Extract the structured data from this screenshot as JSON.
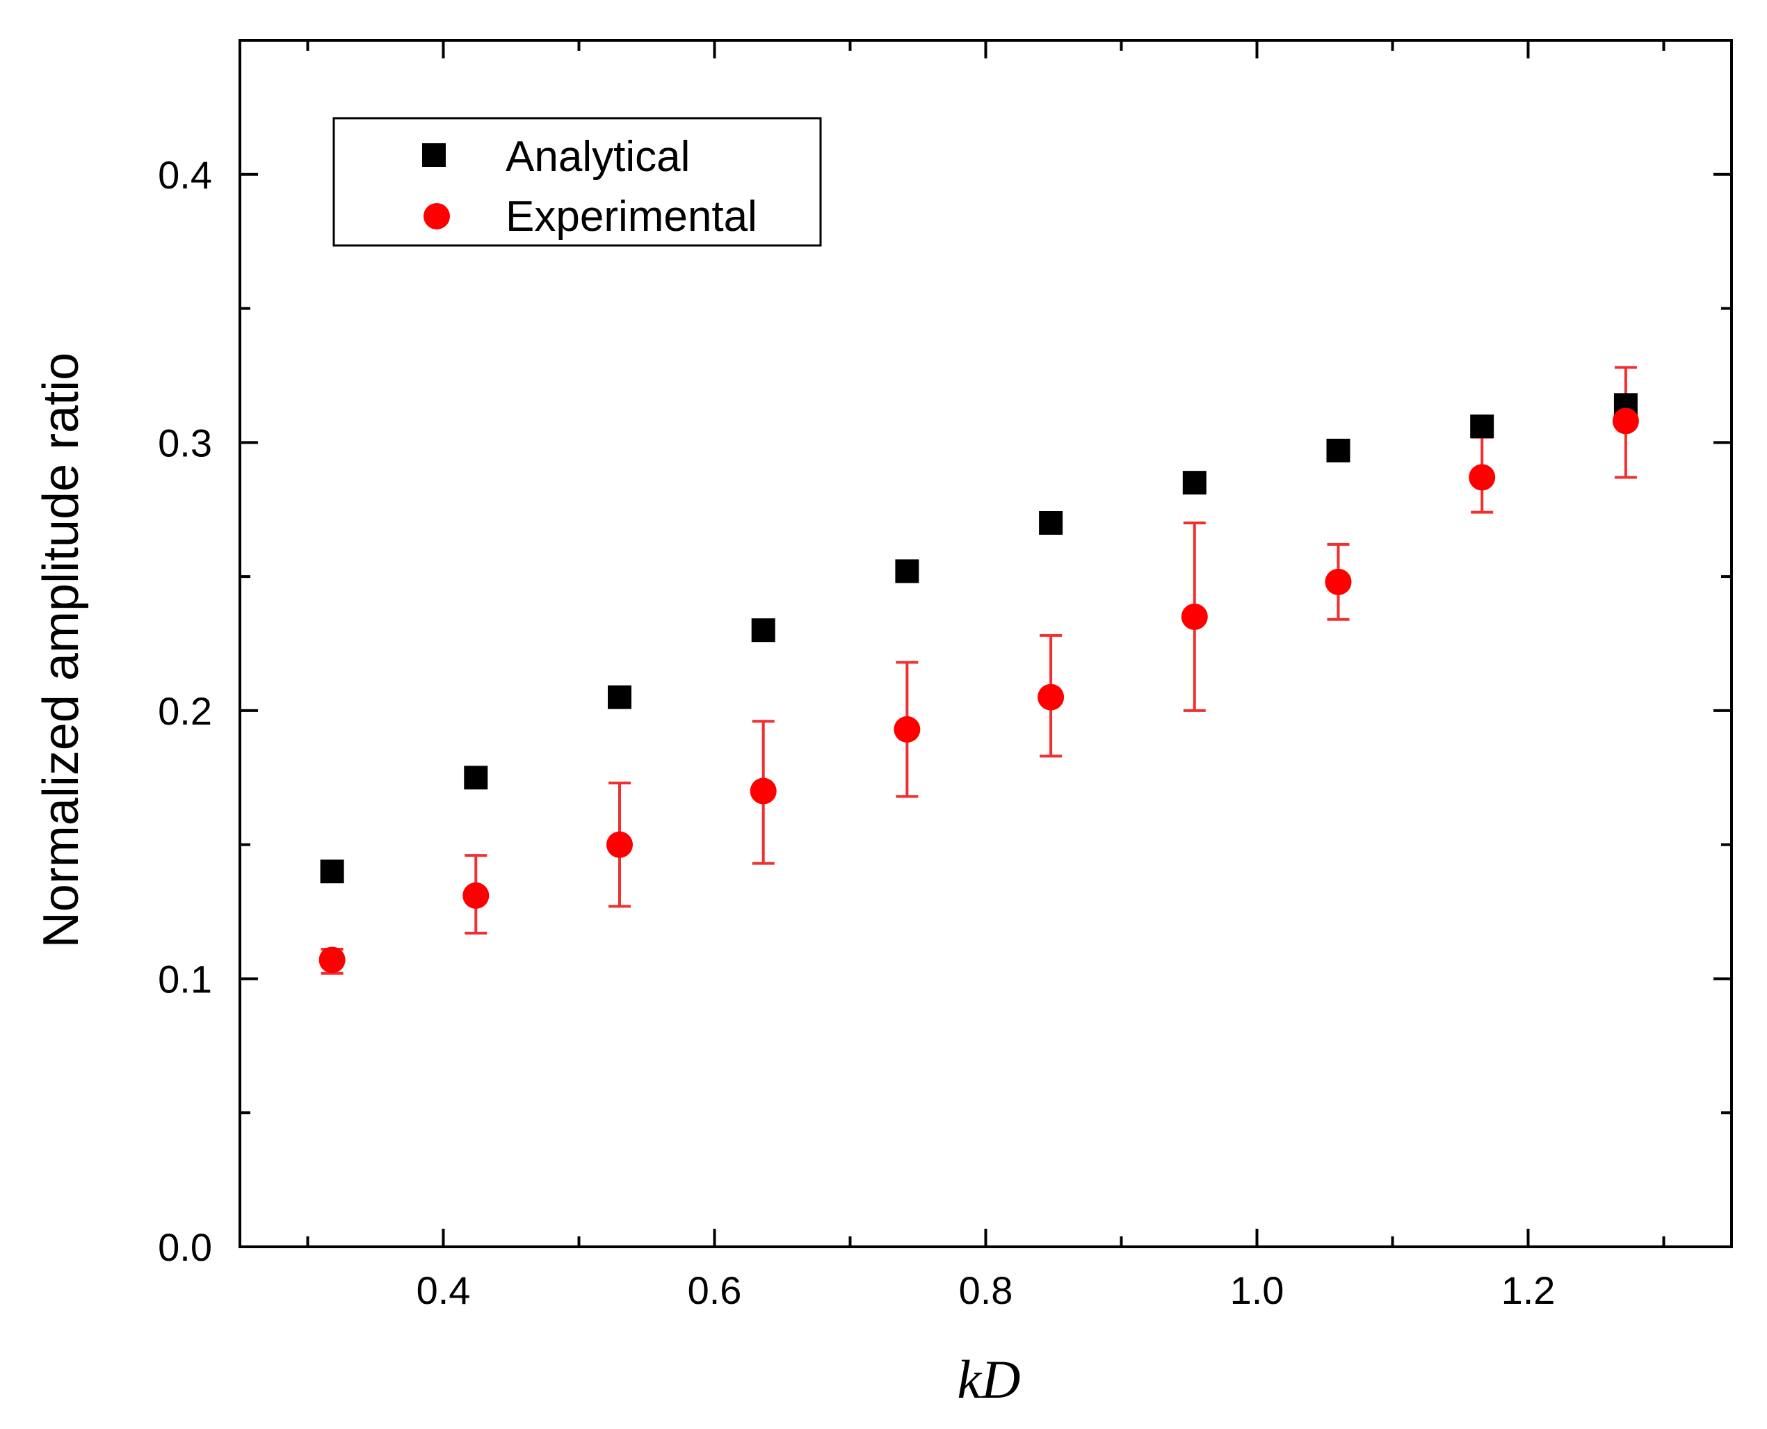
{
  "chart_data": {
    "type": "scatter",
    "title": "",
    "xlabel": "kD",
    "ylabel": "Normalized amplitude ratio",
    "xlim": [
      0.25,
      1.35
    ],
    "ylim": [
      0.0,
      0.45
    ],
    "x_ticks": [
      0.4,
      0.6,
      0.8,
      1.0,
      1.2
    ],
    "x_tick_labels": [
      "0.4",
      "0.6",
      "0.8",
      "1.0",
      "1.2"
    ],
    "y_ticks": [
      0.0,
      0.1,
      0.2,
      0.3,
      0.4
    ],
    "y_tick_labels": [
      "0.0",
      "0.1",
      "0.2",
      "0.3",
      "0.4"
    ],
    "x_minor_ticks": [
      0.3,
      0.5,
      0.7,
      0.9,
      1.1,
      1.3
    ],
    "y_minor_ticks": [
      0.05,
      0.15,
      0.25,
      0.35
    ],
    "grid": false,
    "legend_position": "top-left",
    "series": [
      {
        "name": "Analytical",
        "marker": "square",
        "color": "#000000",
        "x": [
          0.318,
          0.424,
          0.53,
          0.636,
          0.742,
          0.848,
          0.954,
          1.06,
          1.166,
          1.272
        ],
        "y": [
          0.14,
          0.175,
          0.205,
          0.23,
          0.252,
          0.27,
          0.285,
          0.297,
          0.306,
          0.314
        ]
      },
      {
        "name": "Experimental",
        "marker": "circle",
        "color": "#ff0000",
        "errorbar_color": "#f03030",
        "x": [
          0.318,
          0.424,
          0.53,
          0.636,
          0.742,
          0.848,
          0.954,
          1.06,
          1.166,
          1.272
        ],
        "y": [
          0.107,
          0.131,
          0.15,
          0.17,
          0.193,
          0.205,
          0.235,
          0.248,
          0.287,
          0.308
        ],
        "y_err_low": [
          0.102,
          0.117,
          0.127,
          0.143,
          0.168,
          0.183,
          0.2,
          0.234,
          0.274,
          0.287
        ],
        "y_err_high": [
          0.111,
          0.146,
          0.173,
          0.196,
          0.218,
          0.228,
          0.27,
          0.262,
          0.302,
          0.328
        ]
      }
    ]
  }
}
